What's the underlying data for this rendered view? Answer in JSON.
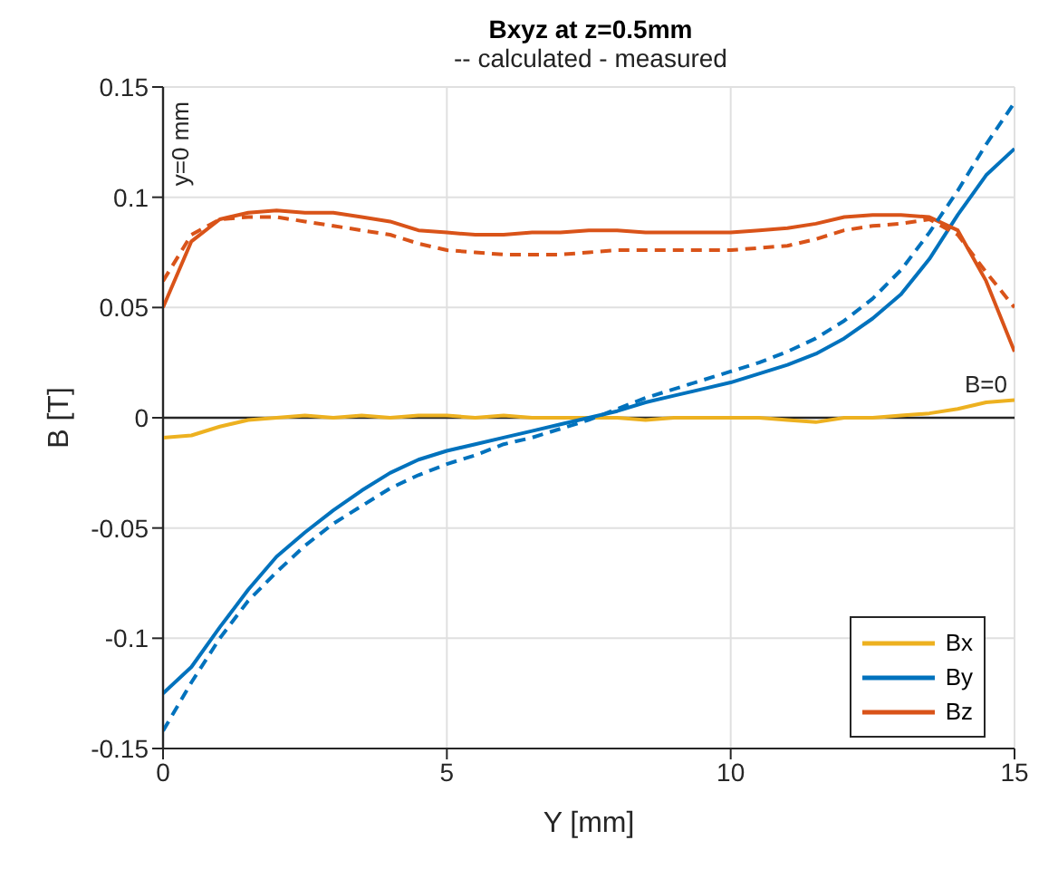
{
  "chart_data": {
    "type": "line",
    "title": "Bxyz at z=0.5mm",
    "subtitle": "-- calculated - measured",
    "xlabel": "Y [mm]",
    "ylabel": "B [T]",
    "x": [
      0,
      0.5,
      1,
      1.5,
      2,
      2.5,
      3,
      3.5,
      4,
      4.5,
      5,
      5.5,
      6,
      6.5,
      7,
      7.5,
      8,
      8.5,
      9,
      9.5,
      10,
      10.5,
      11,
      11.5,
      12,
      12.5,
      13,
      13.5,
      14,
      14.5,
      15
    ],
    "series": [
      {
        "name": "Bx",
        "color": "#edb120",
        "line_style": "solid",
        "values": [
          -0.009,
          -0.008,
          -0.004,
          -0.001,
          0,
          0.001,
          0,
          0.001,
          0,
          0.001,
          0.001,
          0,
          0.001,
          0,
          0,
          0,
          0,
          -0.001,
          0,
          0,
          0,
          0,
          -0.001,
          -0.002,
          0,
          0,
          0.001,
          0.002,
          0.004,
          0.007,
          0.008
        ]
      },
      {
        "name": "By",
        "color": "#0072bd",
        "line_style": "solid",
        "values": [
          -0.125,
          -0.113,
          -0.095,
          -0.078,
          -0.063,
          -0.052,
          -0.042,
          -0.033,
          -0.025,
          -0.019,
          -0.015,
          -0.012,
          -0.009,
          -0.006,
          -0.003,
          0,
          0.003,
          0.007,
          0.01,
          0.013,
          0.016,
          0.02,
          0.024,
          0.029,
          0.036,
          0.045,
          0.056,
          0.072,
          0.092,
          0.11,
          0.122
        ]
      },
      {
        "name": "Bz",
        "color": "#d95319",
        "line_style": "solid",
        "values": [
          0.05,
          0.08,
          0.09,
          0.093,
          0.094,
          0.093,
          0.093,
          0.091,
          0.089,
          0.085,
          0.084,
          0.083,
          0.083,
          0.084,
          0.084,
          0.085,
          0.085,
          0.084,
          0.084,
          0.084,
          0.084,
          0.085,
          0.086,
          0.088,
          0.091,
          0.092,
          0.092,
          0.091,
          0.085,
          0.062,
          0.03
        ]
      },
      {
        "color": "#0072bd",
        "line_style": "dashed",
        "values": [
          -0.142,
          -0.12,
          -0.1,
          -0.083,
          -0.07,
          -0.058,
          -0.048,
          -0.04,
          -0.032,
          -0.026,
          -0.021,
          -0.017,
          -0.012,
          -0.009,
          -0.005,
          -0.001,
          0.004,
          0.009,
          0.013,
          0.017,
          0.021,
          0.025,
          0.03,
          0.036,
          0.044,
          0.054,
          0.067,
          0.084,
          0.103,
          0.124,
          0.143
        ]
      },
      {
        "color": "#d95319",
        "line_style": "dashed",
        "values": [
          0.062,
          0.083,
          0.09,
          0.091,
          0.091,
          0.089,
          0.087,
          0.085,
          0.083,
          0.079,
          0.076,
          0.075,
          0.074,
          0.074,
          0.074,
          0.075,
          0.076,
          0.076,
          0.076,
          0.076,
          0.076,
          0.077,
          0.078,
          0.081,
          0.085,
          0.087,
          0.088,
          0.09,
          0.083,
          0.066,
          0.05
        ]
      }
    ],
    "xlim": [
      0,
      15
    ],
    "xticks": [
      0,
      5,
      10,
      15
    ],
    "ylim": [
      -0.15,
      0.15
    ],
    "yticks": [
      -0.15,
      -0.1,
      -0.05,
      0,
      0.05,
      0.1,
      0.15
    ],
    "ref_lines": [
      {
        "axis": "y",
        "value": 0,
        "label": "B=0",
        "color": "#262626"
      },
      {
        "axis": "x",
        "value": 0,
        "label": "y=0 mm",
        "color": "#262626"
      }
    ],
    "grid": true,
    "legend": "bottom right",
    "marker": "none"
  }
}
